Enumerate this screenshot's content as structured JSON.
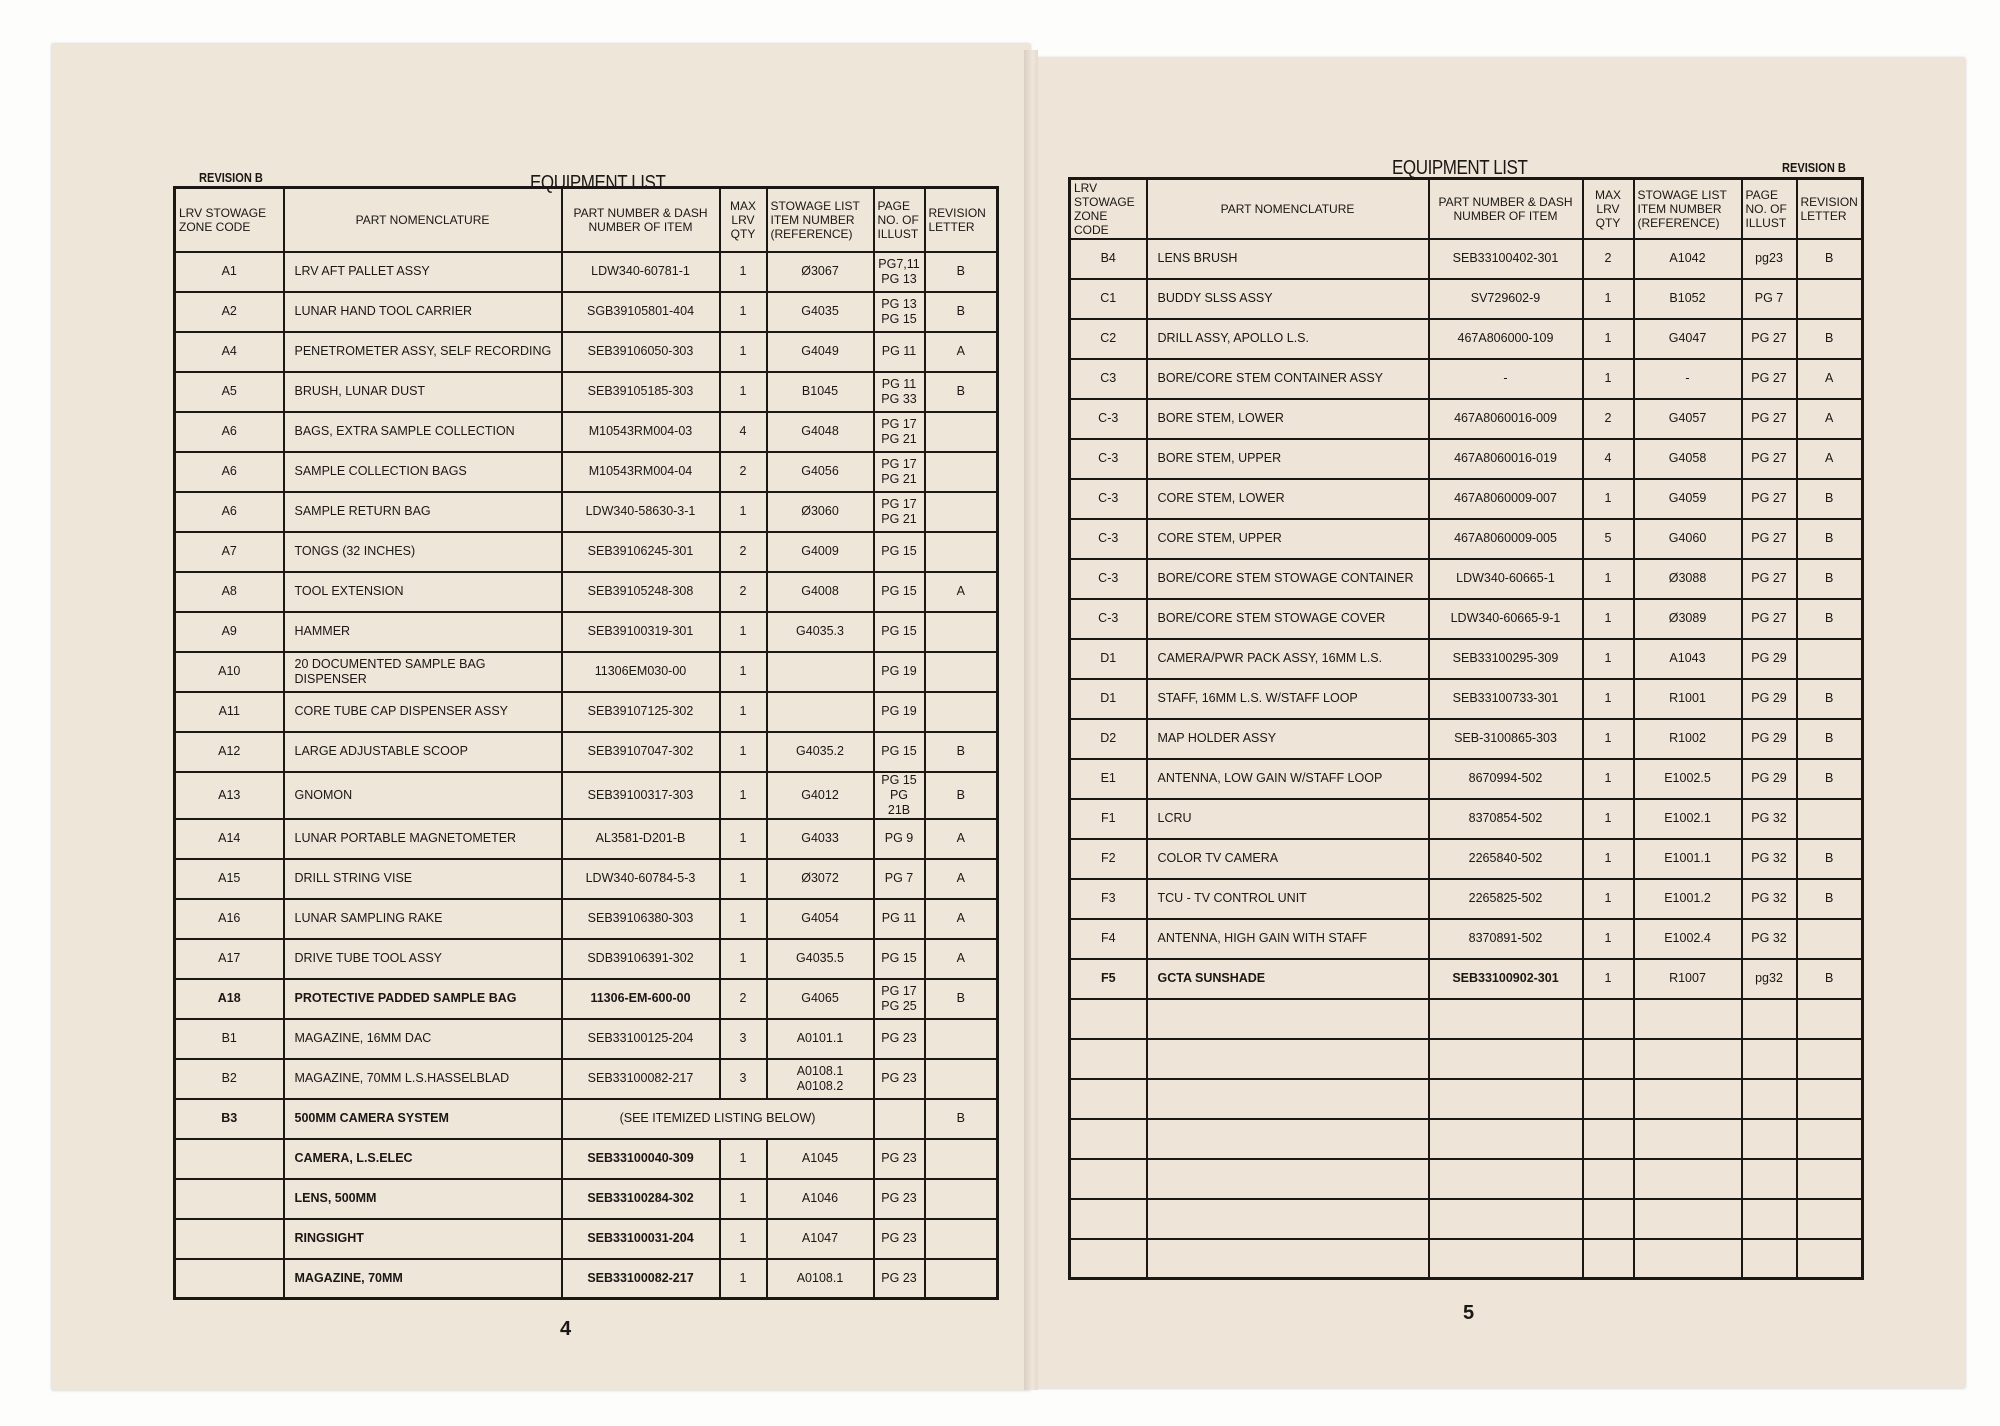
{
  "left_page": {
    "revision": "REVISION B",
    "title": "EQUIPMENT LIST",
    "page_number": "4",
    "headers": [
      "LRV STOWAGE ZONE CODE",
      "PART NOMENCLATURE",
      "PART NUMBER & DASH NUMBER OF ITEM",
      "MAX LRV QTY",
      "STOWAGE LIST ITEM NUMBER (REFERENCE)",
      "PAGE NO. OF ILLUST",
      "REVISION LETTER"
    ],
    "rows": [
      {
        "zone": "A1",
        "name": "LRV AFT PALLET ASSY",
        "part": "LDW340-60781-1",
        "qty": "1",
        "stow": "Ø3067",
        "page": "PG7,11\nPG 13",
        "rev": "B"
      },
      {
        "zone": "A2",
        "name": "LUNAR HAND TOOL CARRIER",
        "part": "SGB39105801-404",
        "qty": "1",
        "stow": "G4035",
        "page": "PG 13\nPG 15",
        "rev": "B"
      },
      {
        "zone": "A4",
        "name": "PENETROMETER ASSY, SELF RECORDING",
        "part": "SEB39106050-303",
        "qty": "1",
        "stow": "G4049",
        "page": "PG 11",
        "rev": "A"
      },
      {
        "zone": "A5",
        "name": "BRUSH, LUNAR DUST",
        "part": "SEB39105185-303",
        "qty": "1",
        "stow": "B1045",
        "page": "PG 11\nPG 33",
        "rev": "B"
      },
      {
        "zone": "A6",
        "name": "BAGS, EXTRA SAMPLE COLLECTION",
        "part": "M10543RM004-03",
        "qty": "4",
        "stow": "G4048",
        "page": "PG 17\nPG 21",
        "rev": ""
      },
      {
        "zone": "A6",
        "name": "SAMPLE COLLECTION BAGS",
        "part": "M10543RM004-04",
        "qty": "2",
        "stow": "G4056",
        "page": "PG 17\nPG 21",
        "rev": ""
      },
      {
        "zone": "A6",
        "name": "SAMPLE RETURN BAG",
        "part": "LDW340-58630-3-1",
        "qty": "1",
        "stow": "Ø3060",
        "page": "PG 17\nPG 21",
        "rev": ""
      },
      {
        "zone": "A7",
        "name": "TONGS (32 INCHES)",
        "part": "SEB39106245-301",
        "qty": "2",
        "stow": "G4009",
        "page": "PG 15",
        "rev": ""
      },
      {
        "zone": "A8",
        "name": "TOOL EXTENSION",
        "part": "SEB39105248-308",
        "qty": "2",
        "stow": "G4008",
        "page": "PG 15",
        "rev": "A"
      },
      {
        "zone": "A9",
        "name": "HAMMER",
        "part": "SEB39100319-301",
        "qty": "1",
        "stow": "G4035.3",
        "page": "PG 15",
        "rev": ""
      },
      {
        "zone": "A10",
        "name": "20 DOCUMENTED SAMPLE BAG\nDISPENSER",
        "part": "11306EM030-00",
        "qty": "1",
        "stow": "",
        "page": "PG 19",
        "rev": ""
      },
      {
        "zone": "A11",
        "name": "CORE TUBE CAP DISPENSER ASSY",
        "part": "SEB39107125-302",
        "qty": "1",
        "stow": "",
        "page": "PG 19",
        "rev": ""
      },
      {
        "zone": "A12",
        "name": "LARGE ADJUSTABLE SCOOP",
        "part": "SEB39107047-302",
        "qty": "1",
        "stow": "G4035.2",
        "page": "PG 15",
        "rev": "B"
      },
      {
        "zone": "A13",
        "name": "GNOMON",
        "part": "SEB39100317-303",
        "qty": "1",
        "stow": "G4012",
        "page": "PG 15\nPG 21B",
        "rev": "B"
      },
      {
        "zone": "A14",
        "name": "LUNAR PORTABLE MAGNETOMETER",
        "part": "AL3581-D201-B",
        "qty": "1",
        "stow": "G4033",
        "page": "PG 9",
        "rev": "A"
      },
      {
        "zone": "A15",
        "name": "DRILL STRING VISE",
        "part": "LDW340-60784-5-3",
        "qty": "1",
        "stow": "Ø3072",
        "page": "PG 7",
        "rev": "A"
      },
      {
        "zone": "A16",
        "name": "LUNAR SAMPLING RAKE",
        "part": "SEB39106380-303",
        "qty": "1",
        "stow": "G4054",
        "page": "PG 11",
        "rev": "A"
      },
      {
        "zone": "A17",
        "name": "DRIVE TUBE TOOL ASSY",
        "part": "SDB39106391-302",
        "qty": "1",
        "stow": "G4035.5",
        "page": "PG 15",
        "rev": "A"
      },
      {
        "zone": "A18",
        "name": "PROTECTIVE PADDED SAMPLE BAG",
        "part": "11306-EM-600-00",
        "qty": "2",
        "stow": "G4065",
        "page": "PG 17\nPG 25",
        "rev": "B",
        "bold": true
      },
      {
        "zone": "B1",
        "name": "MAGAZINE, 16MM DAC",
        "part": "SEB33100125-204",
        "qty": "3",
        "stow": "A0101.1",
        "page": "PG 23",
        "rev": ""
      },
      {
        "zone": "B2",
        "name": "MAGAZINE, 70MM L.S.HASSELBLAD",
        "part": "SEB33100082-217",
        "qty": "3",
        "stow": "A0108.1\nA0108.2",
        "page": "PG 23",
        "rev": ""
      },
      {
        "zone": "B3",
        "name": "500MM CAMERA SYSTEM",
        "note": "(SEE ITEMIZED LISTING BELOW)",
        "page": "",
        "rev": "B",
        "bold": true
      },
      {
        "zone": "",
        "name": "CAMERA, L.S.ELEC",
        "part": "SEB33100040-309",
        "qty": "1",
        "stow": "A1045",
        "page": "PG 23",
        "rev": "",
        "bold": true
      },
      {
        "zone": "",
        "name": "LENS, 500MM",
        "part": "SEB33100284-302",
        "qty": "1",
        "stow": "A1046",
        "page": "PG 23",
        "rev": "",
        "bold": true
      },
      {
        "zone": "",
        "name": "RINGSIGHT",
        "part": "SEB33100031-204",
        "qty": "1",
        "stow": "A1047",
        "page": "PG 23",
        "rev": "",
        "bold": true
      },
      {
        "zone": "",
        "name": "MAGAZINE, 70MM",
        "part": "SEB33100082-217",
        "qty": "1",
        "stow": "A0108.1",
        "page": "PG 23",
        "rev": "",
        "bold": true
      }
    ]
  },
  "right_page": {
    "revision": "REVISION B",
    "title": "EQUIPMENT LIST",
    "page_number": "5",
    "headers": [
      "LRV STOWAGE ZONE CODE",
      "PART NOMENCLATURE",
      "PART NUMBER & DASH NUMBER OF ITEM",
      "MAX LRV QTY",
      "STOWAGE LIST ITEM NUMBER (REFERENCE)",
      "PAGE NO. OF ILLUST",
      "REVISION LETTER"
    ],
    "rows": [
      {
        "zone": "B4",
        "name": "LENS BRUSH",
        "part": "SEB33100402-301",
        "qty": "2",
        "stow": "A1042",
        "page": "pg23",
        "rev": "B"
      },
      {
        "zone": "C1",
        "name": "BUDDY SLSS ASSY",
        "part": "SV729602-9",
        "qty": "1",
        "stow": "B1052",
        "page": "PG 7",
        "rev": ""
      },
      {
        "zone": "C2",
        "name": "DRILL ASSY, APOLLO L.S.",
        "part": "467A806000-109",
        "qty": "1",
        "stow": "G4047",
        "page": "PG 27",
        "rev": "B"
      },
      {
        "zone": "C3",
        "name": "BORE/CORE STEM CONTAINER ASSY",
        "part": "-",
        "qty": "1",
        "stow": "-",
        "page": "PG 27",
        "rev": "A"
      },
      {
        "zone": "C-3",
        "name": "BORE STEM, LOWER",
        "part": "467A8060016-009",
        "qty": "2",
        "stow": "G4057",
        "page": "PG 27",
        "rev": "A"
      },
      {
        "zone": "C-3",
        "name": "BORE STEM, UPPER",
        "part": "467A8060016-019",
        "qty": "4",
        "stow": "G4058",
        "page": "PG 27",
        "rev": "A"
      },
      {
        "zone": "C-3",
        "name": "CORE STEM, LOWER",
        "part": "467A8060009-007",
        "qty": "1",
        "stow": "G4059",
        "page": "PG 27",
        "rev": "B"
      },
      {
        "zone": "C-3",
        "name": "CORE STEM, UPPER",
        "part": "467A8060009-005",
        "qty": "5",
        "stow": "G4060",
        "page": "PG 27",
        "rev": "B"
      },
      {
        "zone": "C-3",
        "name": "BORE/CORE STEM STOWAGE CONTAINER",
        "part": "LDW340-60665-1",
        "qty": "1",
        "stow": "Ø3088",
        "page": "PG 27",
        "rev": "B"
      },
      {
        "zone": "C-3",
        "name": "BORE/CORE STEM STOWAGE COVER",
        "part": "LDW340-60665-9-1",
        "qty": "1",
        "stow": "Ø3089",
        "page": "PG 27",
        "rev": "B"
      },
      {
        "zone": "D1",
        "name": "CAMERA/PWR PACK ASSY, 16MM L.S.",
        "part": "SEB33100295-309",
        "qty": "1",
        "stow": "A1043",
        "page": "PG 29",
        "rev": ""
      },
      {
        "zone": "D1",
        "name": "STAFF, 16MM L.S. W/STAFF LOOP",
        "part": "SEB33100733-301",
        "qty": "1",
        "stow": "R1001",
        "page": "PG 29",
        "rev": "B"
      },
      {
        "zone": "D2",
        "name": "MAP HOLDER ASSY",
        "part": "SEB-3100865-303",
        "qty": "1",
        "stow": "R1002",
        "page": "PG 29",
        "rev": "B"
      },
      {
        "zone": "E1",
        "name": "ANTENNA, LOW GAIN W/STAFF LOOP",
        "part": "8670994-502",
        "qty": "1",
        "stow": "E1002.5",
        "page": "PG 29",
        "rev": "B"
      },
      {
        "zone": "F1",
        "name": "LCRU",
        "part": "8370854-502",
        "qty": "1",
        "stow": "E1002.1",
        "page": "PG 32",
        "rev": ""
      },
      {
        "zone": "F2",
        "name": "COLOR TV CAMERA",
        "part": "2265840-502",
        "qty": "1",
        "stow": "E1001.1",
        "page": "PG 32",
        "rev": "B"
      },
      {
        "zone": "F3",
        "name": "TCU - TV CONTROL UNIT",
        "part": "2265825-502",
        "qty": "1",
        "stow": "E1001.2",
        "page": "PG 32",
        "rev": "B"
      },
      {
        "zone": "F4",
        "name": "ANTENNA, HIGH GAIN WITH STAFF",
        "part": "8370891-502",
        "qty": "1",
        "stow": "E1002.4",
        "page": "PG 32",
        "rev": ""
      },
      {
        "zone": "F5",
        "name": "GCTA SUNSHADE",
        "part": "SEB33100902-301",
        "qty": "1",
        "stow": "R1007",
        "page": "pg32",
        "rev": "B",
        "bold": true
      },
      {},
      {},
      {},
      {},
      {},
      {},
      {}
    ]
  },
  "colors": {
    "paper": "#efe6da",
    "ink": "#1a1714",
    "background": "#fdfdfc"
  }
}
